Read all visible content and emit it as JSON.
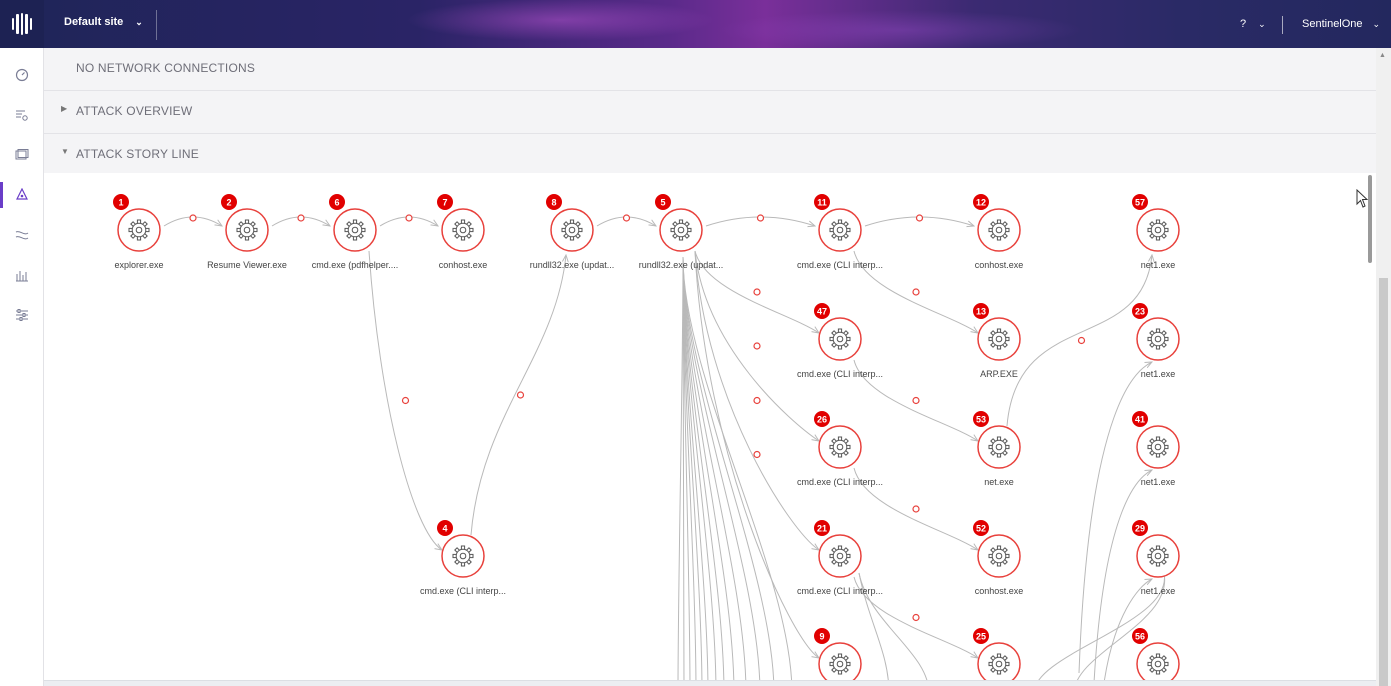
{
  "header": {
    "site_label": "Default site",
    "help_label": "?",
    "user_label": "SentinelOne"
  },
  "sidebar": {
    "items": [
      {
        "name": "dashboard",
        "icon": "gauge-icon"
      },
      {
        "name": "activity",
        "icon": "list-search-icon"
      },
      {
        "name": "devices",
        "icon": "devices-icon"
      },
      {
        "name": "threats",
        "icon": "hazard-icon",
        "active": true
      },
      {
        "name": "network",
        "icon": "network-icon"
      },
      {
        "name": "reports",
        "icon": "bar-chart-icon"
      },
      {
        "name": "settings",
        "icon": "sliders-icon"
      }
    ]
  },
  "sections": {
    "network": "NO NETWORK CONNECTIONS",
    "overview": "ATTACK OVERVIEW",
    "storyline": "ATTACK STORY LINE"
  },
  "graph": {
    "colors": {
      "node": "#e8413c",
      "badge": "#e10000",
      "edge": "#b9b9b9"
    },
    "nodes": [
      {
        "id": "n1",
        "badge": "1",
        "label": "explorer.exe",
        "col": 0,
        "row": 0
      },
      {
        "id": "n2",
        "badge": "2",
        "label": "Resume Viewer.exe",
        "col": 1,
        "row": 0
      },
      {
        "id": "n6",
        "badge": "6",
        "label": "cmd.exe (pdfhelper....",
        "col": 2,
        "row": 0
      },
      {
        "id": "n7",
        "badge": "7",
        "label": "conhost.exe",
        "col": 3,
        "row": 0
      },
      {
        "id": "n4",
        "badge": "4",
        "label": "cmd.exe (CLI interp...",
        "col": 3,
        "row": 3
      },
      {
        "id": "n8",
        "badge": "8",
        "label": "rundll32.exe (updat...",
        "col": 4,
        "row": 0
      },
      {
        "id": "n5",
        "badge": "5",
        "label": "rundll32.exe (updat...",
        "col": 5,
        "row": 0
      },
      {
        "id": "n11",
        "badge": "11",
        "label": "cmd.exe (CLI interp...",
        "col": 6,
        "row": 0
      },
      {
        "id": "n47",
        "badge": "47",
        "label": "cmd.exe (CLI interp...",
        "col": 6,
        "row": 1
      },
      {
        "id": "n26",
        "badge": "26",
        "label": "cmd.exe (CLI interp...",
        "col": 6,
        "row": 2
      },
      {
        "id": "n21",
        "badge": "21",
        "label": "cmd.exe (CLI interp...",
        "col": 6,
        "row": 3
      },
      {
        "id": "n9",
        "badge": "9",
        "label": "",
        "col": 6,
        "row": 4
      },
      {
        "id": "n12",
        "badge": "12",
        "label": "conhost.exe",
        "col": 7,
        "row": 0
      },
      {
        "id": "n13",
        "badge": "13",
        "label": "ARP.EXE",
        "col": 7,
        "row": 1
      },
      {
        "id": "n53",
        "badge": "53",
        "label": "net.exe",
        "col": 7,
        "row": 2
      },
      {
        "id": "n52",
        "badge": "52",
        "label": "conhost.exe",
        "col": 7,
        "row": 3
      },
      {
        "id": "n25",
        "badge": "25",
        "label": "",
        "col": 7,
        "row": 4
      },
      {
        "id": "n57",
        "badge": "57",
        "label": "net1.exe",
        "col": 8,
        "row": 0
      },
      {
        "id": "n23",
        "badge": "23",
        "label": "net1.exe",
        "col": 8,
        "row": 1
      },
      {
        "id": "n41",
        "badge": "41",
        "label": "net1.exe",
        "col": 8,
        "row": 2
      },
      {
        "id": "n29",
        "badge": "29",
        "label": "net1.exe",
        "col": 8,
        "row": 3
      },
      {
        "id": "n56",
        "badge": "56",
        "label": "",
        "col": 8,
        "row": 4
      }
    ],
    "edges": [
      [
        "n1",
        "n2"
      ],
      [
        "n2",
        "n6"
      ],
      [
        "n6",
        "n7"
      ],
      [
        "n6",
        "n4"
      ],
      [
        "n4",
        "n8"
      ],
      [
        "n8",
        "n5"
      ],
      [
        "n5",
        "n11"
      ],
      [
        "n5",
        "n47"
      ],
      [
        "n5",
        "n26"
      ],
      [
        "n5",
        "n21"
      ],
      [
        "n5",
        "n9"
      ],
      [
        "n11",
        "n12"
      ],
      [
        "n11",
        "n13"
      ],
      [
        "n47",
        "n53"
      ],
      [
        "n26",
        "n52"
      ],
      [
        "n21",
        "n25"
      ],
      [
        "n53",
        "n57"
      ]
    ]
  }
}
